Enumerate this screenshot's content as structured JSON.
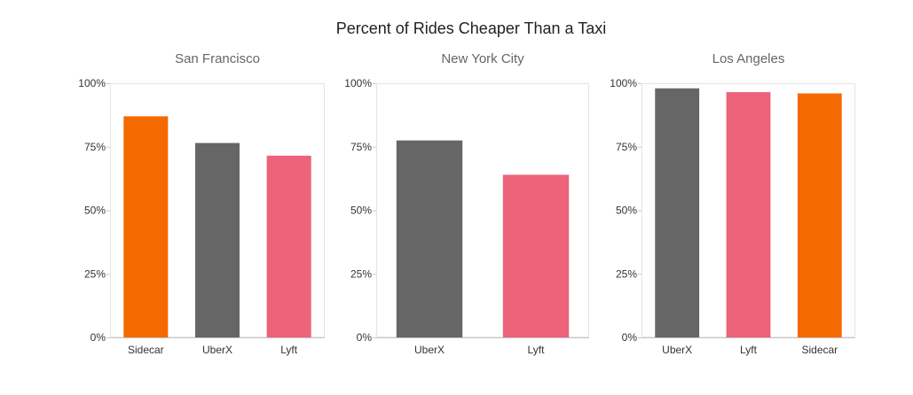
{
  "title": "Percent of Rides Cheaper Than a Taxi",
  "colors": {
    "Sidecar": "#f46a00",
    "UberX": "#666666",
    "Lyft": "#ec637a",
    "frame": "#e4e4e4",
    "axis": "#c8c8c8"
  },
  "chart_data": [
    {
      "type": "bar",
      "title": "San Francisco",
      "categories": [
        "Sidecar",
        "UberX",
        "Lyft"
      ],
      "values": [
        87,
        76.5,
        71.5
      ],
      "ylim": [
        0,
        100
      ],
      "yticks": [
        "0%",
        "25%",
        "50%",
        "75%",
        "100%"
      ],
      "grid": false
    },
    {
      "type": "bar",
      "title": "New York City",
      "categories": [
        "UberX",
        "Lyft"
      ],
      "values": [
        77.5,
        64
      ],
      "ylim": [
        0,
        100
      ],
      "yticks": [
        "0%",
        "25%",
        "50%",
        "75%",
        "100%"
      ],
      "grid": false
    },
    {
      "type": "bar",
      "title": "Los Angeles",
      "categories": [
        "UberX",
        "Lyft",
        "Sidecar"
      ],
      "values": [
        98,
        96.5,
        96
      ],
      "ylim": [
        0,
        100
      ],
      "yticks": [
        "0%",
        "25%",
        "50%",
        "75%",
        "100%"
      ],
      "grid": false
    }
  ]
}
